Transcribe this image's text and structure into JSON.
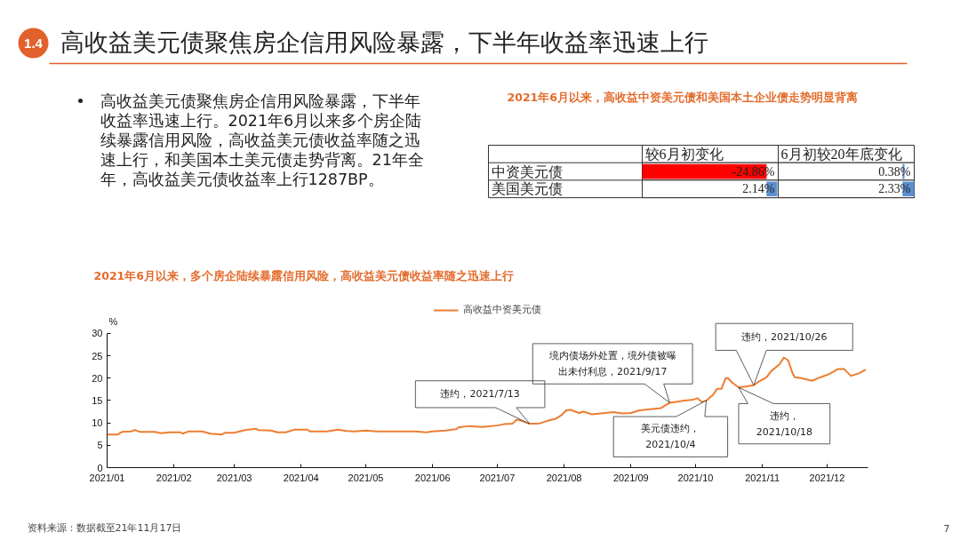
{
  "chart_data": [
    {
      "type": "other",
      "title": "高收益美元债聚焦房企信用风险暴露，下半年收益率迅速上行",
      "annotations": [
        "1.4"
      ]
    },
    {
      "type": "other",
      "annotations": [
        "高收益美元债聚焦房企信用风险暴露，下半年收益率迅速上行。2021年6月以来多个房企陆续暴露信用风险，高收益美元债收益率随之迅速上行，和美国本土美元债走势背离。21年全年，高收益美元债收益率上行1287BP。"
      ]
    },
    {
      "type": "heatmap",
      "title": "2021年6月以来，高收益中资美元债和美国本土企业债走势明显背离",
      "categories": [
        "较6月初变化",
        "6月初较20年底变化"
      ],
      "y_categories": [
        "中资美元债",
        "美国美元债"
      ],
      "cells": [
        [
          -24.86,
          0.38
        ],
        [
          2.14,
          2.33
        ]
      ],
      "cell_labels": [
        [
          "-24.86%",
          "0.38%"
        ],
        [
          "2.14%",
          "2.33%"
        ]
      ]
    },
    {
      "type": "line",
      "title": "2021年6月以来，多个房企陆续暴露信用风险，高收益美元债收益率随之迅速上行",
      "ylabel": "%",
      "x": [
        "2021-01-01",
        "2021-01-06",
        "2021-01-08",
        "2021-01-12",
        "2021-01-14",
        "2021-01-16",
        "2021-01-23",
        "2021-01-26",
        "2021-01-30",
        "2021-02-04",
        "2021-02-05",
        "2021-02-08",
        "2021-02-14",
        "2021-02-18",
        "2021-02-23",
        "2021-02-25",
        "2021-03-01",
        "2021-03-06",
        "2021-03-11",
        "2021-03-12",
        "2021-03-18",
        "2021-03-21",
        "2021-03-25",
        "2021-03-29",
        "2021-04-04",
        "2021-04-05",
        "2021-04-13",
        "2021-04-18",
        "2021-04-22",
        "2021-04-26",
        "2021-05-01",
        "2021-05-06",
        "2021-05-17",
        "2021-05-24",
        "2021-05-29",
        "2021-06-01",
        "2021-06-07",
        "2021-06-12",
        "2021-06-13",
        "2021-06-18",
        "2021-06-24",
        "2021-06-26",
        "2021-07-01",
        "2021-07-04",
        "2021-07-08",
        "2021-07-10",
        "2021-07-12",
        "2021-07-16",
        "2021-07-20",
        "2021-07-24",
        "2021-07-28",
        "2021-07-31",
        "2021-08-02",
        "2021-08-04",
        "2021-08-08",
        "2021-08-10",
        "2021-08-14",
        "2021-08-18",
        "2021-08-24",
        "2021-08-28",
        "2021-09-01",
        "2021-09-05",
        "2021-09-11",
        "2021-09-15",
        "2021-09-19",
        "2021-09-22",
        "2021-09-26",
        "2021-09-30",
        "2021-10-02",
        "2021-10-04",
        "2021-10-06",
        "2021-10-09",
        "2021-10-11",
        "2021-10-13",
        "2021-10-15",
        "2021-10-16",
        "2021-10-18",
        "2021-10-21",
        "2021-10-24",
        "2021-10-28",
        "2021-10-30",
        "2021-11-03",
        "2021-11-05",
        "2021-11-09",
        "2021-11-11",
        "2021-11-13",
        "2021-11-15",
        "2021-11-16",
        "2021-11-19",
        "2021-11-24",
        "2021-11-28",
        "2021-12-02",
        "2021-12-06",
        "2021-12-09",
        "2021-12-12",
        "2021-12-16",
        "2021-12-19"
      ],
      "series": [
        {
          "name": "高收益中资美元债",
          "color": "#ed7d31",
          "values": [
            7.4,
            7.4,
            8.0,
            8.1,
            8.4,
            8.0,
            8.0,
            7.7,
            7.9,
            7.9,
            7.6,
            8.1,
            8.1,
            7.6,
            7.4,
            7.8,
            7.8,
            8.4,
            8.7,
            8.4,
            8.3,
            7.9,
            7.9,
            8.5,
            8.5,
            8.1,
            8.1,
            8.5,
            8.2,
            8.1,
            8.3,
            8.1,
            8.1,
            8.1,
            7.9,
            8.1,
            8.3,
            8.6,
            9.0,
            9.3,
            9.1,
            9.2,
            9.4,
            9.7,
            9.8,
            10.7,
            10.5,
            9.8,
            9.8,
            10.4,
            10.9,
            11.8,
            12.8,
            12.9,
            12.2,
            12.5,
            11.9,
            12.1,
            12.4,
            12.1,
            12.2,
            12.8,
            13.1,
            13.3,
            14.5,
            14.7,
            15.0,
            15.2,
            15.5,
            14.6,
            15.0,
            16.2,
            17.6,
            17.6,
            20.0,
            20.0,
            19.0,
            17.9,
            18.1,
            18.4,
            19.1,
            20.2,
            21.5,
            23.1,
            24.6,
            23.9,
            21.1,
            20.2,
            20.0,
            19.4,
            20.2,
            20.9,
            22.0,
            22.0,
            20.5,
            21.1,
            21.9
          ]
        }
      ],
      "xlim": [
        "2021-01-01",
        "2021-12-20"
      ],
      "ylim": [
        0,
        30
      ],
      "xticks": [
        {
          "value": "2021-01",
          "label": "2021/01"
        },
        {
          "value": "2021-02",
          "label": "2021/02"
        },
        {
          "value": "2021-03",
          "label": "2021/03"
        },
        {
          "value": "2021-04",
          "label": "2021/04"
        },
        {
          "value": "2021-05",
          "label": "2021/05"
        },
        {
          "value": "2021-06",
          "label": "2021/06"
        },
        {
          "value": "2021-07",
          "label": "2021/07"
        },
        {
          "value": "2021-08",
          "label": "2021/08"
        },
        {
          "value": "2021-09",
          "label": "2021/09"
        },
        {
          "value": "2021-10",
          "label": "2021/10"
        },
        {
          "value": "2021-11",
          "label": "2021/11"
        },
        {
          "value": "2021-12",
          "label": "2021/12"
        }
      ],
      "yticks": [
        0,
        5,
        10,
        15,
        20,
        25,
        30
      ],
      "legend": "top",
      "annotations": [
        {
          "text": "违约，2021/7/13",
          "x": "2021-07-16",
          "y": 9.8
        },
        {
          "text": "境内债场外处置，境外债被曝出未付利息，2021/9/17",
          "x": "2021-09-19",
          "y": 14.5
        },
        {
          "text": "美元债违约，2021/10/4",
          "x": "2021-10-06",
          "y": 15.0
        },
        {
          "text": "违约，2021/10/18",
          "x": "2021-10-21",
          "y": 17.9
        },
        {
          "text": "违约，2021/10/26",
          "x": "2021-10-28",
          "y": 18.4
        },
        "资料来源：数据截至21年11月17日",
        "7"
      ]
    }
  ]
}
